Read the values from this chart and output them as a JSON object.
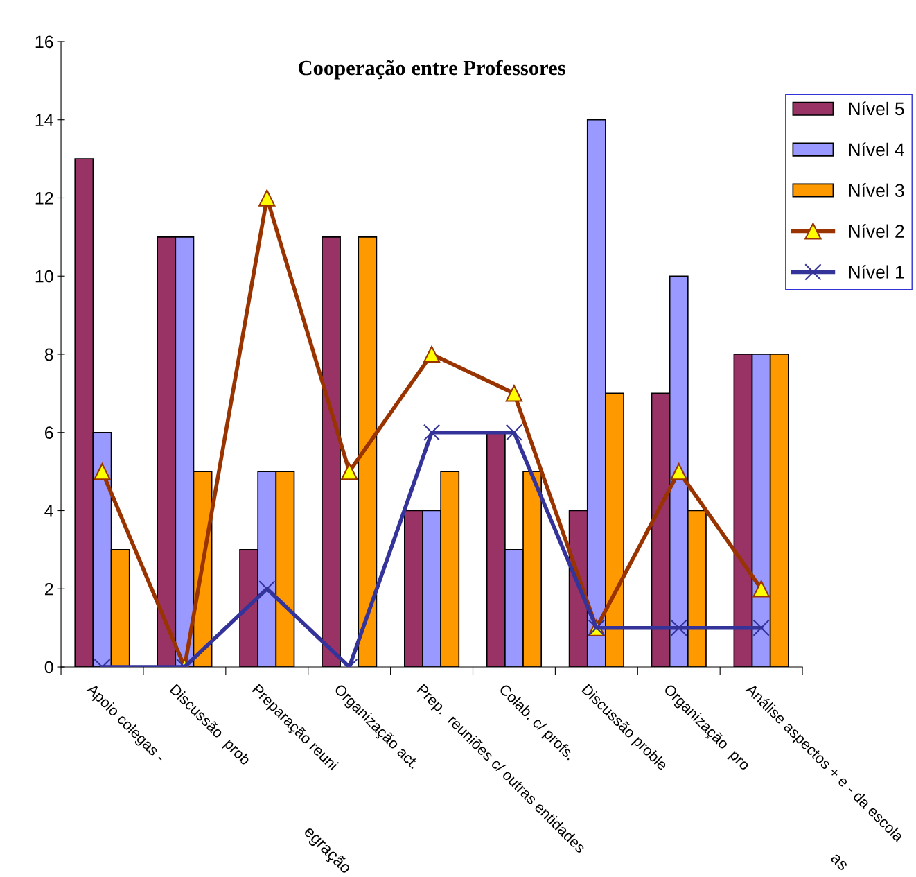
{
  "chart_data": {
    "type": "bar",
    "title": "Cooperação entre Professores",
    "categories": [
      "Apoio colegas -",
      "Discussão  prob",
      "Preparação reuni",
      "Organização act.",
      "Prep.  reuniões c/ outras entidades",
      "Colab. c/ profs.",
      "Discussão proble",
      "Organização  pro",
      "Análise aspectos + e - da escola"
    ],
    "series": [
      {
        "name": "Nível 5",
        "color": "#993366",
        "values": [
          13,
          11,
          3,
          11,
          4,
          6,
          4,
          7,
          8
        ]
      },
      {
        "name": "Nível 4",
        "color": "#9999ff",
        "values": [
          6,
          11,
          5,
          null,
          4,
          3,
          14,
          10,
          8
        ]
      },
      {
        "name": "Nível 3",
        "color": "#ff9900",
        "values": [
          3,
          5,
          5,
          11,
          5,
          5,
          7,
          4,
          8
        ]
      },
      {
        "name": "Nível 2",
        "color": "#993300",
        "type": "line",
        "marker": "triangle",
        "values": [
          5,
          0,
          12,
          5,
          8,
          7,
          1,
          5,
          2
        ]
      },
      {
        "name": "Nível 1",
        "color": "#333399",
        "type": "line",
        "marker": "cross",
        "values": [
          0,
          0,
          2,
          0,
          6,
          6,
          1,
          1,
          1
        ]
      }
    ],
    "ylim": [
      0,
      16
    ],
    "yticks": [
      0,
      2,
      4,
      6,
      8,
      10,
      12,
      14,
      16
    ],
    "grid": false,
    "legend": "right",
    "annotations": [
      "egração",
      "as"
    ]
  }
}
